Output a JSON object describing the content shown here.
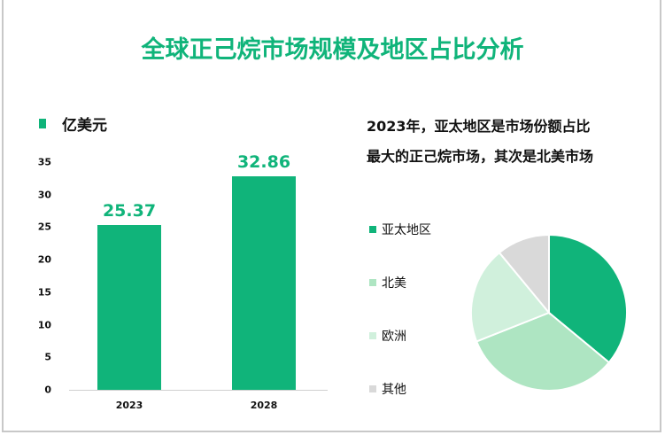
{
  "title": "全球正己烷市场规模及地区占比分析",
  "note_line1": "2023年，亚太地区是市场份额占比",
  "note_line2": "最大的正己烷市场，其次是北美市场",
  "chart_data": [
    {
      "type": "bar",
      "legend": "亿美元",
      "legend_placement": "top-left",
      "categories": [
        "2023",
        "2028"
      ],
      "values": [
        25.37,
        32.86
      ],
      "data_labels": [
        "25.37",
        "32.86"
      ],
      "ylim": [
        0,
        35
      ],
      "yticks": [
        "0",
        "5",
        "10",
        "15",
        "20",
        "25",
        "30",
        "35"
      ],
      "color": "#10b47a",
      "grid": false
    },
    {
      "type": "pie",
      "legend_placement": "left",
      "slices": [
        {
          "name": "亚太地区",
          "value": 36,
          "color": "#10b47a"
        },
        {
          "name": "北美",
          "value": 33,
          "color": "#aee5c2"
        },
        {
          "name": "欧洲",
          "value": 20,
          "color": "#d0f0dc"
        },
        {
          "name": "其他",
          "value": 11,
          "color": "#d9d9d9"
        }
      ]
    }
  ]
}
